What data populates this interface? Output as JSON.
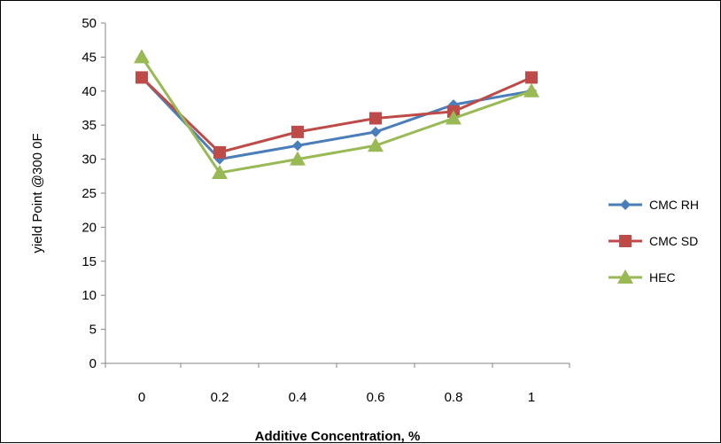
{
  "chart_data": {
    "type": "line",
    "title": "",
    "xlabel": "Additive Concentration, %",
    "ylabel": "yield Point @300 0F",
    "x": [
      0,
      0.2,
      0.4,
      0.6,
      0.8,
      1
    ],
    "x_tick_labels": [
      "0",
      "0.2",
      "0.4",
      "0.6",
      "0.8",
      "1"
    ],
    "ylim": [
      0,
      50
    ],
    "y_ticks": [
      0,
      5,
      10,
      15,
      20,
      25,
      30,
      35,
      40,
      45,
      50
    ],
    "grid": false,
    "legend_position": "right",
    "series": [
      {
        "name": "CMC RH",
        "values": [
          42,
          30,
          32,
          34,
          38,
          40
        ],
        "color": "#4a7ebb",
        "marker": "diamond"
      },
      {
        "name": "CMC SD",
        "values": [
          42,
          31,
          34,
          36,
          37,
          42
        ],
        "color": "#be4b48",
        "marker": "square"
      },
      {
        "name": "HEC",
        "values": [
          45,
          28,
          30,
          32,
          36,
          40
        ],
        "color": "#98b954",
        "marker": "triangle"
      }
    ]
  }
}
